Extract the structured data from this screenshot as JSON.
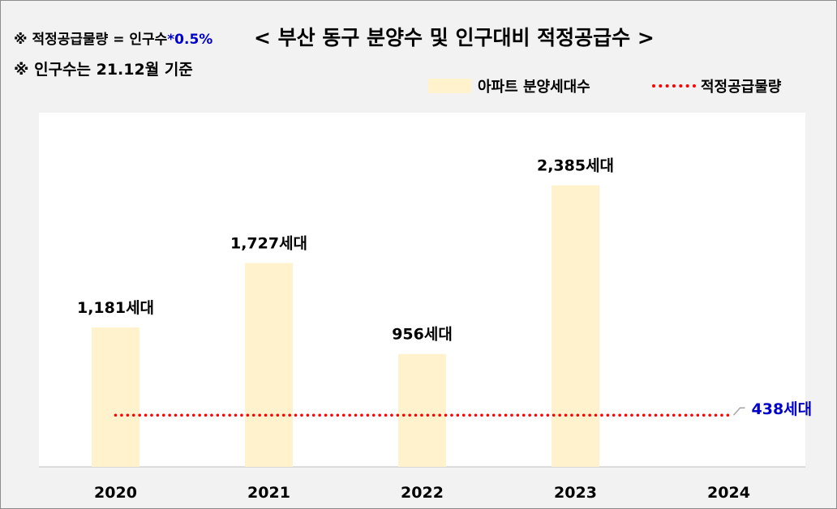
{
  "header": {
    "note_formula_prefix": "※ 적정공급물량 = 인구수",
    "note_formula_mult": "*0.5%",
    "note_population": "※ 인구수는 21.12월 기준",
    "title": "< 부산 동구 분양수 및 인구대비 적정공급수 >"
  },
  "colors": {
    "bar": "#fff2cc",
    "reference_line": "#ff0000",
    "reference_label": "#0000cc",
    "plot_bg": "#ffffff",
    "outer_bg": "#f2f2f2"
  },
  "chart_data": {
    "type": "bar",
    "title": "< 부산 동구 분양수 및 인구대비 적정공급수 >",
    "categories": [
      "2020",
      "2021",
      "2022",
      "2023",
      "2024"
    ],
    "series": [
      {
        "name": "아파트 분양세대수",
        "type": "bar",
        "values": [
          1181,
          1727,
          956,
          2385,
          null
        ],
        "labels": [
          "1,181세대",
          "1,727세대",
          "956세대",
          "2,385세대",
          ""
        ]
      },
      {
        "name": "적정공급물량",
        "type": "line",
        "style": "dotted",
        "values": [
          438,
          438,
          438,
          438,
          438
        ],
        "end_label": "438세대"
      }
    ],
    "ylim": [
      0,
      3000
    ],
    "grid": false,
    "legend_position": "top-right"
  }
}
